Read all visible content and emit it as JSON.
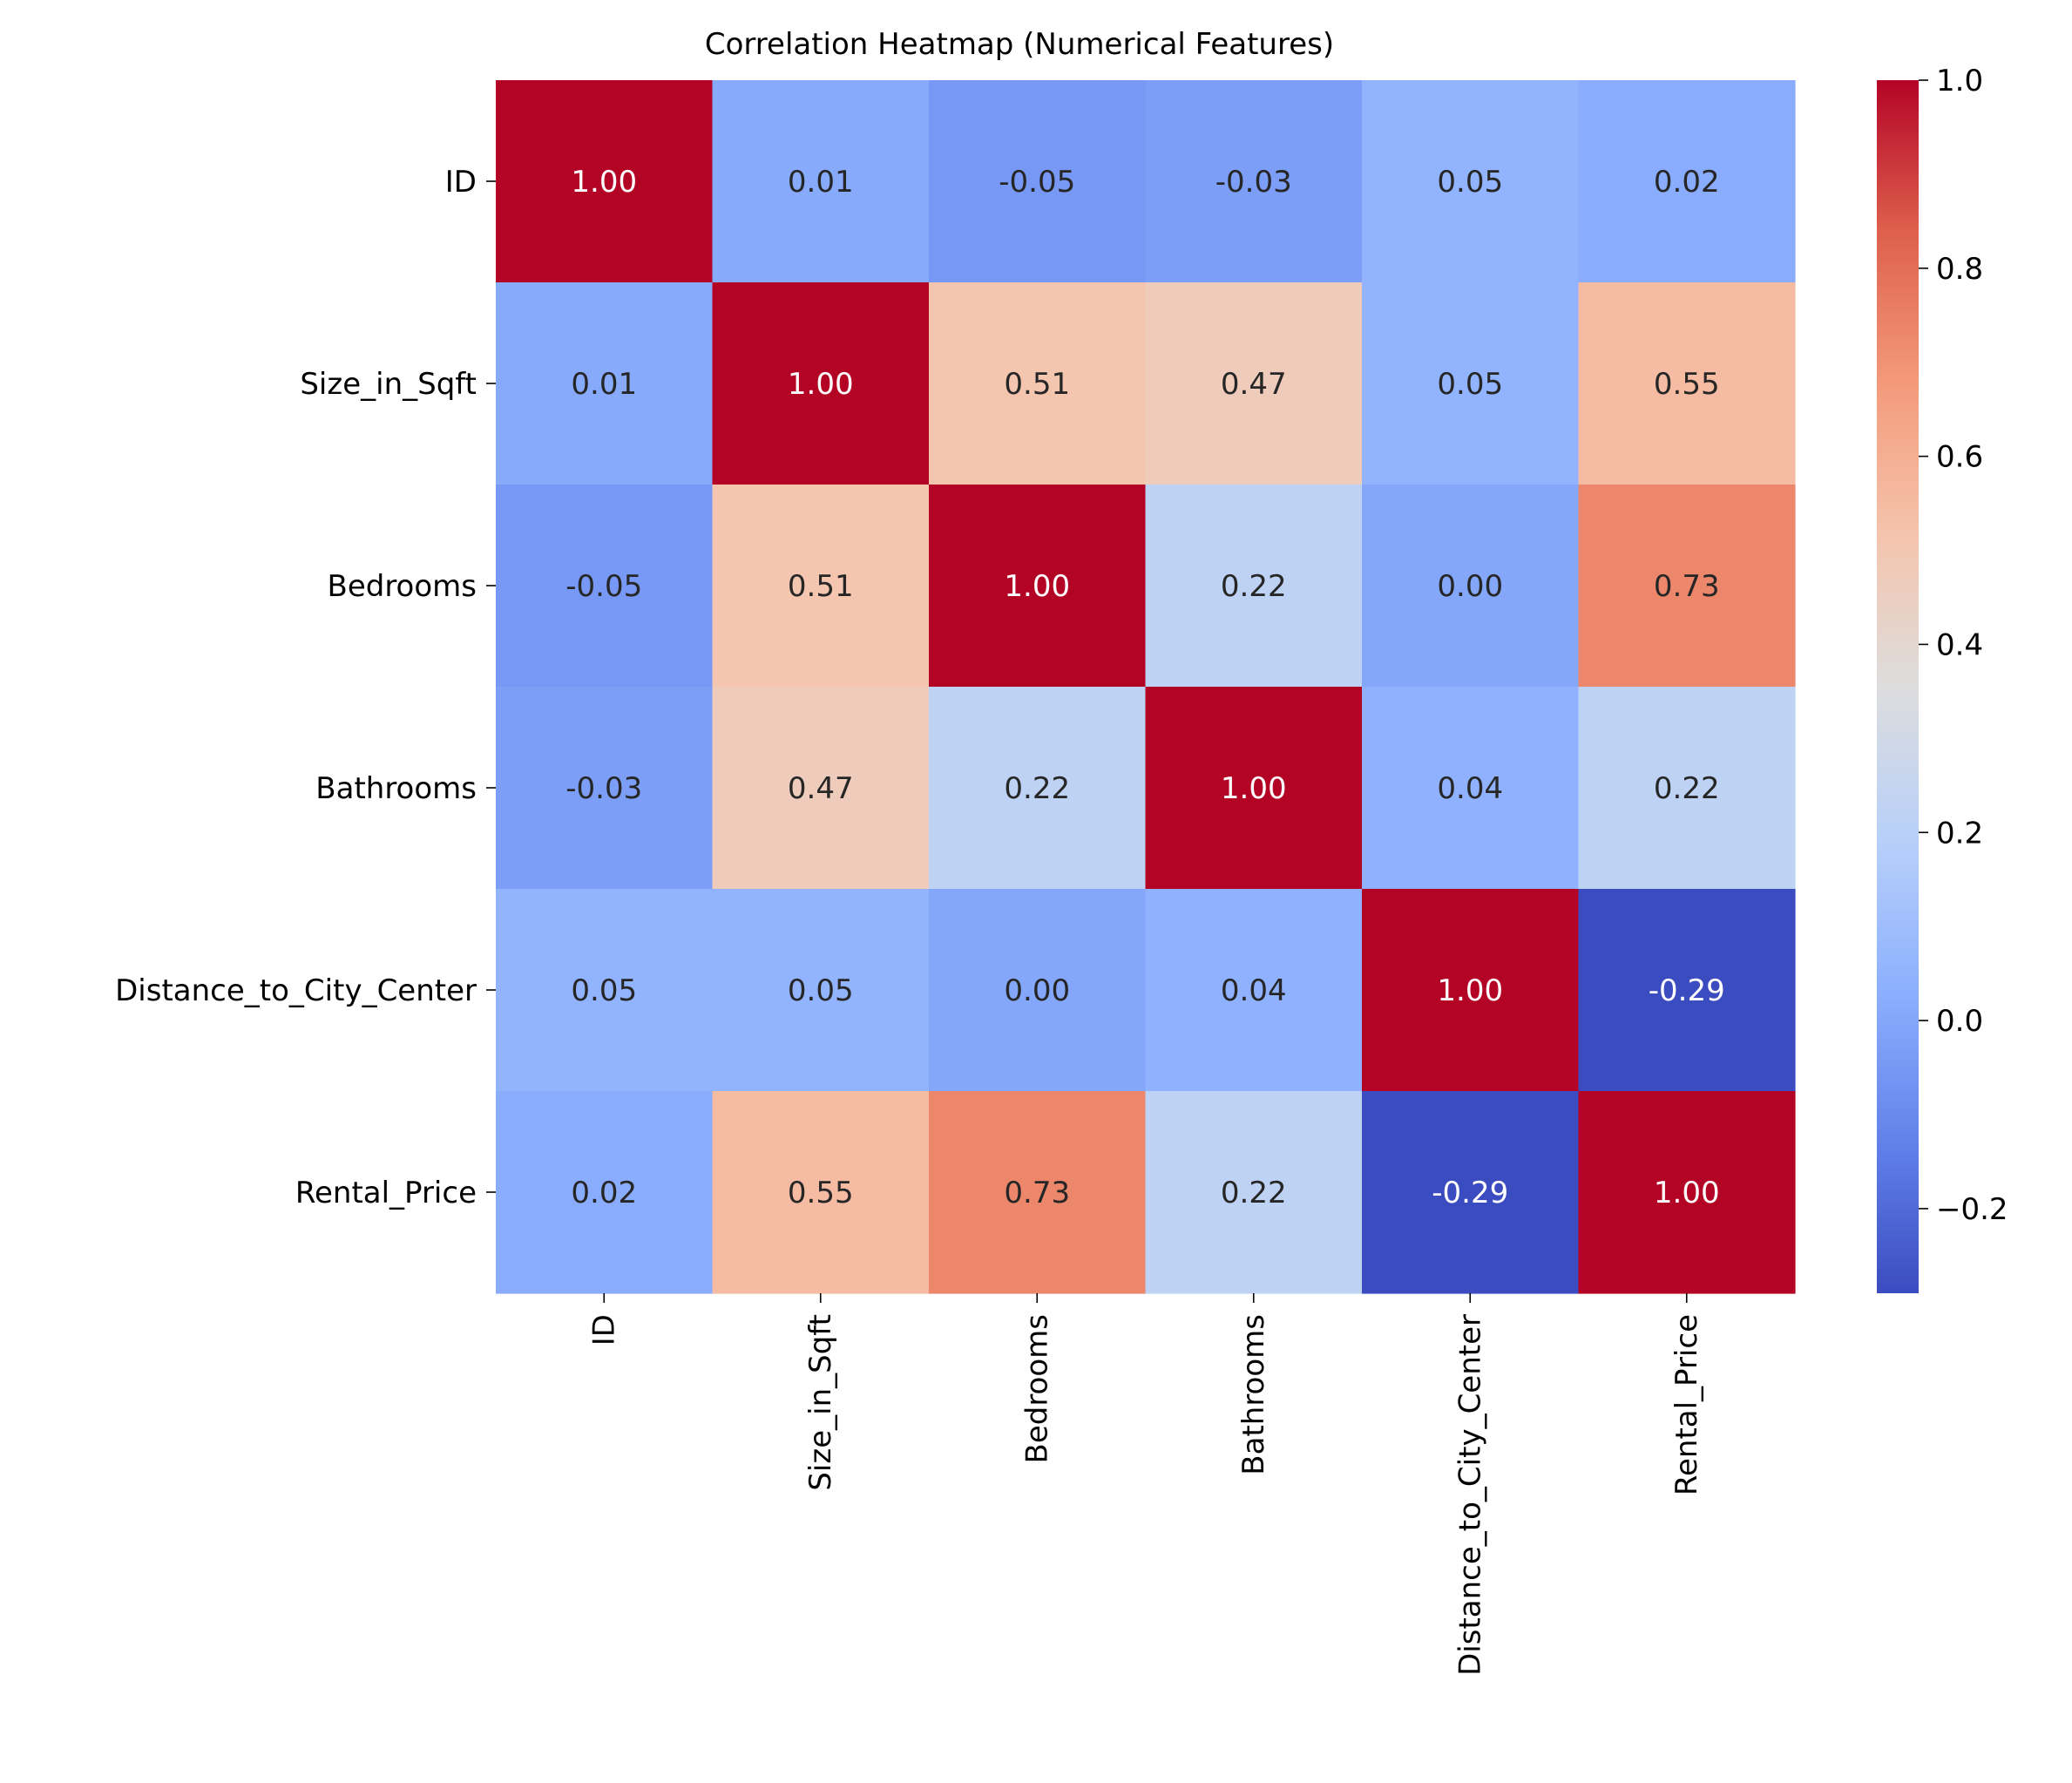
{
  "chart_data": {
    "type": "heatmap",
    "title": "Correlation Heatmap (Numerical Features)",
    "row_labels": [
      "ID",
      "Size_in_Sqft",
      "Bedrooms",
      "Bathrooms",
      "Distance_to_City_Center",
      "Rental_Price"
    ],
    "col_labels": [
      "ID",
      "Size_in_Sqft",
      "Bedrooms",
      "Bathrooms",
      "Distance_to_City_Center",
      "Rental_Price"
    ],
    "values": [
      [
        1.0,
        0.01,
        -0.05,
        -0.03,
        0.05,
        0.02
      ],
      [
        0.01,
        1.0,
        0.51,
        0.47,
        0.05,
        0.55
      ],
      [
        -0.05,
        0.51,
        1.0,
        0.22,
        0.0,
        0.73
      ],
      [
        -0.03,
        0.47,
        0.22,
        1.0,
        0.04,
        0.22
      ],
      [
        0.05,
        0.05,
        0.0,
        0.04,
        1.0,
        -0.29
      ],
      [
        0.02,
        0.55,
        0.73,
        0.22,
        -0.29,
        1.0
      ]
    ],
    "annotation_format": "0.00",
    "colormap": "coolwarm",
    "color_range": [
      -0.29,
      1.0
    ],
    "colorbar_ticks": [
      -0.2,
      0.0,
      0.2,
      0.4,
      0.6,
      0.8,
      1.0
    ],
    "colorbar_tick_labels": [
      "−0.2",
      "0.0",
      "0.2",
      "0.4",
      "0.6",
      "0.8",
      "1.0"
    ]
  }
}
